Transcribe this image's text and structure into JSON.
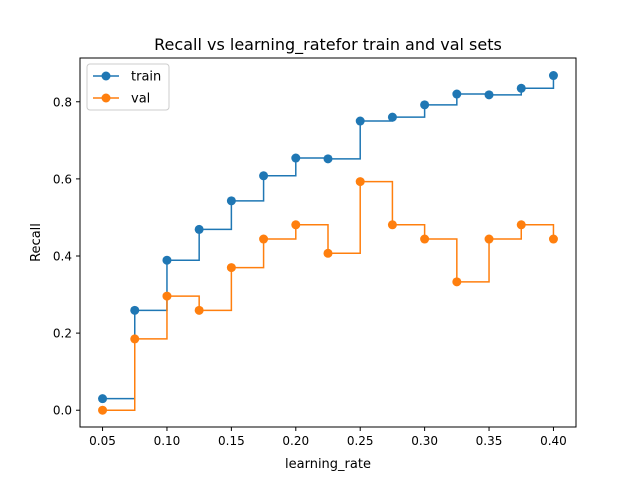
{
  "chart_data": {
    "type": "line",
    "drawstyle": "steps-post",
    "title": "Recall vs learning_ratefor train and val sets",
    "xlabel": "learning_rate",
    "ylabel": "Recall",
    "xlim": [
      0.0325,
      0.4175
    ],
    "ylim": [
      -0.0435,
      0.9135
    ],
    "xticks": [
      0.05,
      0.1,
      0.15,
      0.2,
      0.25,
      0.3,
      0.35,
      0.4
    ],
    "xtick_labels": [
      "0.05",
      "0.10",
      "0.15",
      "0.20",
      "0.25",
      "0.30",
      "0.35",
      "0.40"
    ],
    "yticks": [
      0.0,
      0.2,
      0.4,
      0.6,
      0.8
    ],
    "ytick_labels": [
      "0.0",
      "0.2",
      "0.4",
      "0.6",
      "0.8"
    ],
    "grid": false,
    "legend_position": "top-left",
    "x": [
      0.05,
      0.075,
      0.1,
      0.125,
      0.15,
      0.175,
      0.2,
      0.225,
      0.25,
      0.275,
      0.3,
      0.325,
      0.35,
      0.375,
      0.4
    ],
    "series": [
      {
        "name": "train",
        "color": "#1f77b4",
        "values": [
          0.03,
          0.259,
          0.389,
          0.469,
          0.543,
          0.608,
          0.654,
          0.652,
          0.75,
          0.76,
          0.792,
          0.82,
          0.818,
          0.835,
          0.868
        ]
      },
      {
        "name": "val",
        "color": "#ff7f0e",
        "values": [
          0.0,
          0.185,
          0.296,
          0.259,
          0.37,
          0.444,
          0.481,
          0.407,
          0.593,
          0.481,
          0.444,
          0.333,
          0.444,
          0.481,
          0.444
        ]
      }
    ]
  }
}
